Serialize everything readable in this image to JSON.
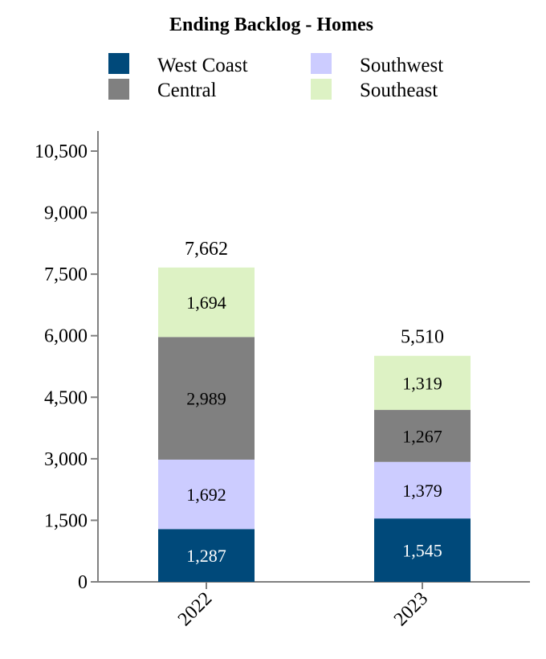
{
  "chart_data": {
    "type": "bar",
    "stacked": true,
    "title": "Ending Backlog - Homes",
    "xlabel": "",
    "ylabel": "",
    "categories": [
      "2022",
      "2023"
    ],
    "ylim": [
      0,
      10500
    ],
    "yticks": [
      "0",
      "1,500",
      "3,000",
      "4,500",
      "6,000",
      "7,500",
      "9,000",
      "10,500"
    ],
    "ytick_values": [
      0,
      1500,
      3000,
      4500,
      6000,
      7500,
      9000,
      10500
    ],
    "legend_position": "top",
    "grid": false,
    "series": [
      {
        "name": "West Coast",
        "color": "#00497a",
        "label_color": "#ffffff",
        "values": [
          1287,
          1545
        ],
        "labels": [
          "1,287",
          "1,545"
        ]
      },
      {
        "name": "Southwest",
        "color": "#ccccff",
        "label_color": "#000000",
        "values": [
          1692,
          1379
        ],
        "labels": [
          "1,692",
          "1,379"
        ]
      },
      {
        "name": "Central",
        "color": "#808080",
        "label_color": "#000000",
        "values": [
          2989,
          1267
        ],
        "labels": [
          "2,989",
          "1,267"
        ]
      },
      {
        "name": "Southeast",
        "color": "#ddf2c4",
        "label_color": "#000000",
        "values": [
          1694,
          1319
        ],
        "labels": [
          "1,694",
          "1,319"
        ]
      }
    ],
    "totals": [
      7662,
      5510
    ],
    "total_labels": [
      "7,662",
      "5,510"
    ],
    "legend": [
      {
        "name": "West Coast",
        "color": "#00497a"
      },
      {
        "name": "Southwest",
        "color": "#ccccff"
      },
      {
        "name": "Central",
        "color": "#808080"
      },
      {
        "name": "Southeast",
        "color": "#ddf2c4"
      }
    ]
  }
}
